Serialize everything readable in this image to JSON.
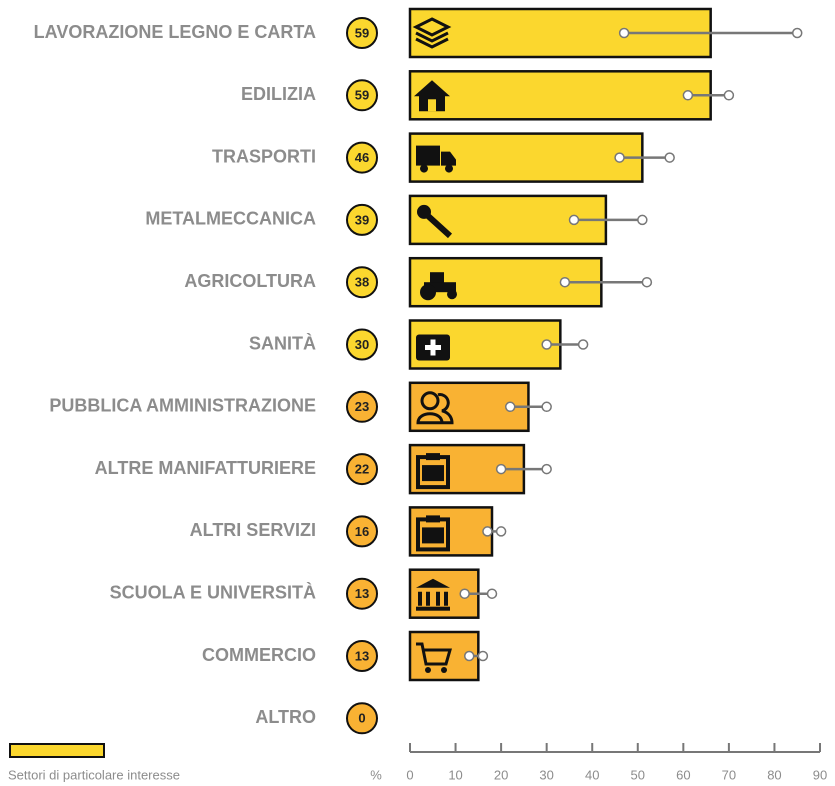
{
  "chart_data": {
    "type": "bar",
    "categories": [
      "LAVORAZIONE LEGNO E CARTA",
      "EDILIZIA",
      "TRASPORTI",
      "METALMECCANICA",
      "AGRICOLTURA",
      "SANITÀ",
      "PUBBLICA AMMINISTRAZIONE",
      "ALTRE MANIFATTURIERE",
      "ALTRI SERVIZI",
      "SCUOLA E UNIVERSITÀ",
      "COMMERCIO",
      "ALTRO"
    ],
    "values": [
      66,
      66,
      51,
      43,
      42,
      33,
      26,
      25,
      18,
      15,
      15,
      0
    ],
    "badge_values": [
      59,
      59,
      46,
      39,
      38,
      30,
      23,
      22,
      16,
      13,
      13,
      0
    ],
    "range_low": [
      47,
      61,
      46,
      36,
      34,
      30,
      22,
      20,
      17,
      12,
      13,
      null
    ],
    "range_high": [
      85,
      70,
      57,
      51,
      52,
      38,
      30,
      30,
      20,
      18,
      16,
      null
    ],
    "colors": [
      "#fbd72e",
      "#fbd72e",
      "#fbd72e",
      "#fbd72e",
      "#fbd72e",
      "#fbd72e",
      "#f9b233",
      "#f9b233",
      "#f9b233",
      "#f9b233",
      "#f9b233",
      "#f9b233"
    ],
    "range_color": "#777777",
    "xlabel": "%",
    "xlim": [
      0,
      90
    ],
    "xticks": [
      0,
      10,
      20,
      30,
      40,
      50,
      60,
      70,
      80,
      90
    ],
    "legend": {
      "label": "Settori di particolare interesse",
      "color": "#fbd72e",
      "position": "lower left"
    }
  }
}
